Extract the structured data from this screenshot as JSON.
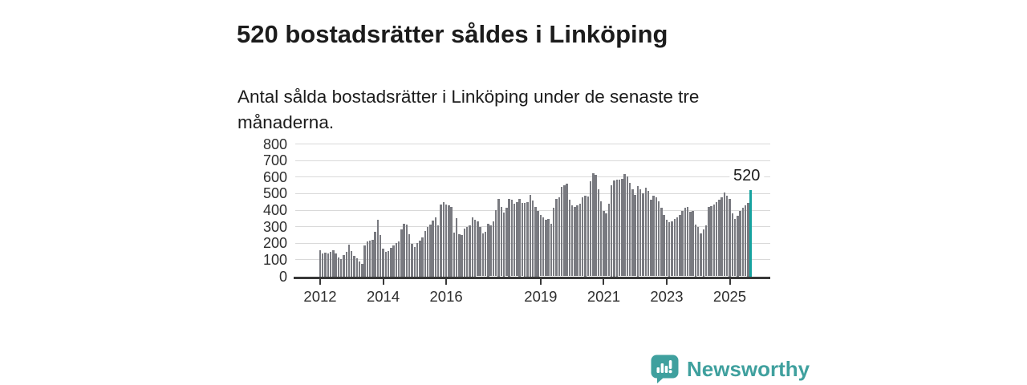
{
  "header": {
    "title": "520 bostadsrätter såldes i Linköping",
    "subtitle": "Antal sålda bostadsrätter i Linköping under de senaste tre månaderna."
  },
  "chart_data": {
    "type": "bar",
    "title": "520 bostadsrätter såldes i Linköping",
    "subtitle": "Antal sålda bostadsrätter i Linköping under de senaste tre månaderna.",
    "x_unit": "month",
    "x_start": "2012-01",
    "x_end": "2025-09",
    "ylim": [
      0,
      800
    ],
    "yticks": [
      0,
      100,
      200,
      300,
      400,
      500,
      600,
      700,
      800
    ],
    "xticks": [
      {
        "label": "2012",
        "year": 2012
      },
      {
        "label": "2014",
        "year": 2014
      },
      {
        "label": "2016",
        "year": 2016
      },
      {
        "label": "2019",
        "year": 2019
      },
      {
        "label": "2021",
        "year": 2021
      },
      {
        "label": "2023",
        "year": 2023
      },
      {
        "label": "2025",
        "year": 2025
      }
    ],
    "grid": true,
    "values": [
      160,
      140,
      145,
      140,
      150,
      160,
      140,
      115,
      105,
      130,
      150,
      190,
      155,
      125,
      110,
      90,
      75,
      185,
      210,
      215,
      220,
      270,
      340,
      250,
      165,
      150,
      155,
      170,
      185,
      200,
      210,
      285,
      320,
      315,
      255,
      195,
      175,
      200,
      215,
      235,
      275,
      300,
      315,
      335,
      355,
      310,
      435,
      450,
      435,
      430,
      420,
      265,
      350,
      255,
      250,
      290,
      300,
      310,
      355,
      340,
      333,
      298,
      261,
      269,
      320,
      309,
      333,
      402,
      470,
      421,
      385,
      413,
      470,
      462,
      437,
      449,
      470,
      442,
      445,
      450,
      490,
      460,
      420,
      395,
      373,
      357,
      341,
      349,
      317,
      413,
      469,
      477,
      541,
      549,
      558,
      461,
      429,
      421,
      429,
      437,
      477,
      485,
      481,
      574,
      622,
      614,
      526,
      454,
      397,
      381,
      437,
      550,
      580,
      585,
      582,
      587,
      619,
      606,
      566,
      526,
      494,
      545,
      526,
      502,
      534,
      518,
      462,
      486,
      477,
      454,
      414,
      373,
      341,
      325,
      333,
      349,
      357,
      373,
      397,
      414,
      421,
      389,
      397,
      315,
      298,
      261,
      285,
      309,
      421,
      426,
      433,
      449,
      462,
      477,
      506,
      486,
      470,
      381,
      349,
      365,
      397,
      414,
      429,
      445,
      520
    ],
    "highlight": {
      "index": 164,
      "value": 520,
      "label": "520"
    },
    "colors": {
      "bar": "#797a80",
      "highlight": "#16a3a0",
      "grid": "#d9d9d9",
      "axis": "#383838"
    }
  },
  "footer": {
    "brand": "Newsworthy",
    "logo_icon": "bar-chart-speech-bubble-icon",
    "brand_color": "#3fa09e"
  }
}
